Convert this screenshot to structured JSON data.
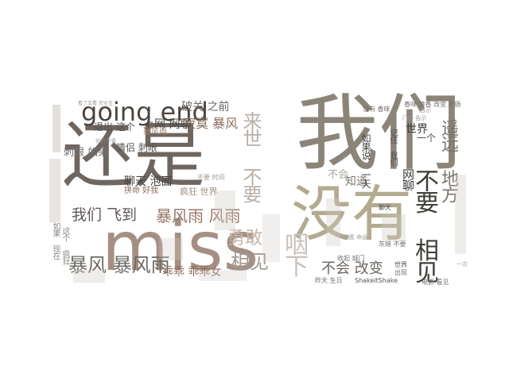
{
  "words": [
    {
      "text": "还是",
      "color": "#6f6660"
    },
    {
      "text": "miss",
      "color": "#a58f83"
    },
    {
      "text": "我们",
      "color": "#8b8478"
    },
    {
      "text": "没有",
      "color": "#b3ab90"
    },
    {
      "text": "going end",
      "color": "#4a4540"
    },
    {
      "text": "不要 相见",
      "color": "#3e3e38"
    },
    {
      "text": "遥远 地方",
      "color": "#7a766c"
    },
    {
      "text": "暴风 暴风雨",
      "color": "#6e6a64"
    },
    {
      "text": "我们 飞到",
      "color": "#5f5a58"
    },
    {
      "text": "暴风雨 风雨",
      "color": "#9a7868"
    },
    {
      "text": "勇敢",
      "color": "#c4b4a8"
    },
    {
      "text": "相见",
      "color": "#a09a94"
    },
    {
      "text": "咽下",
      "color": "#c8c2bc"
    },
    {
      "text": "不会 改变",
      "color": "#6a6560"
    },
    {
      "text": "来世 不要",
      "color": "#b8b0a8"
    },
    {
      "text": "寂寞 暴风",
      "color": "#8a7060"
    },
    {
      "text": "上网 网聊",
      "color": "#4a4642"
    },
    {
      "text": "破关 之前",
      "color": "#6a6660"
    },
    {
      "text": "聊天 泡面",
      "color": "#454240"
    },
    {
      "text": "情侣 刺眼",
      "color": "#5a5652"
    },
    {
      "text": "退出 这个",
      "color": "#555050"
    },
    {
      "text": "刺眼 如果",
      "color": "#707070"
    },
    {
      "text": "世界",
      "color": "#3a3a36"
    },
    {
      "text": "网聊",
      "color": "#3a3a36"
    },
    {
      "text": "知道",
      "color": "#7a7670"
    },
    {
      "text": "如果说 一天",
      "color": "#4a4642"
    },
    {
      "text": "乖乖 乖乖女",
      "color": "#8a6a5a"
    },
    {
      "text": "疯狂 世界",
      "color": "#a09080"
    },
    {
      "text": "拼命 好我",
      "color": "#8a6a5a"
    },
    {
      "text": "ShakeitShake",
      "color": "#5a5652"
    },
    {
      "text": "昨天 生日",
      "color": "#777070"
    },
    {
      "text": "电影 看见",
      "color": "#777070"
    },
    {
      "text": "记住 我们",
      "color": "#555050"
    },
    {
      "text": "不会",
      "color": "#b0a8a0"
    },
    {
      "text": "如果 现在",
      "color": "#8a8a88"
    },
    {
      "text": "这个 疯狂",
      "color": "#8a8a88"
    },
    {
      "text": "收起 城门",
      "color": "#777070"
    },
    {
      "text": "没有 香味",
      "color": "#777070"
    },
    {
      "text": "香味 清香 改变 肝肠",
      "color": "#777070"
    },
    {
      "text": "看了又看 完全互",
      "color": "#999590"
    },
    {
      "text": "你们 不要",
      "color": "#999590"
    },
    {
      "text": "门外 告示",
      "color": "#999590"
    },
    {
      "text": "灰暗 不要",
      "color": "#777070"
    },
    {
      "text": "不要 时间",
      "color": "#a09a94"
    },
    {
      "text": "暴风雨",
      "color": "#9a8070"
    },
    {
      "text": "世界",
      "color": "#555050"
    },
    {
      "text": "聊天",
      "color": "#555050"
    },
    {
      "text": "一次",
      "color": "#a09a94"
    },
    {
      "text": "出现",
      "color": "#777070"
    },
    {
      "text": "战胜 命运",
      "color": "#999590"
    },
    {
      "text": "一个",
      "color": "#555050"
    },
    {
      "text": "告示",
      "color": "#999590"
    }
  ]
}
